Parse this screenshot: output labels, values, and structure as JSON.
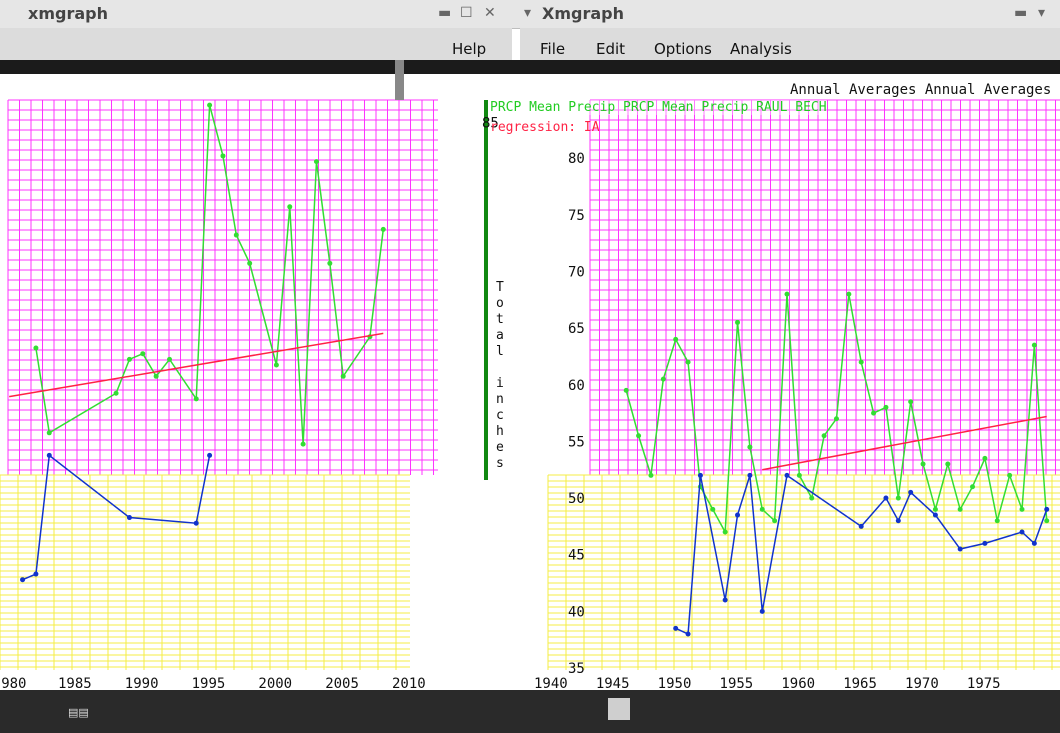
{
  "windows": [
    {
      "title": "xmgraph",
      "controls": [
        "▬",
        "☐",
        "✕"
      ],
      "menus": [
        "Help"
      ]
    },
    {
      "title": "Xmgraph",
      "menus": [
        "File",
        "Edit",
        "Options",
        "Analysis"
      ],
      "graph_title": "Annual Averages Annual Averages",
      "legend": "PRCP Mean Precip  PRCP Mean Precip  RAUL BECH",
      "regression_label": "regression: IA",
      "y_axis_label": [
        "T",
        "o",
        "t",
        "a",
        "l",
        "",
        "i",
        "n",
        "c",
        "h",
        "e",
        "s"
      ]
    }
  ],
  "colors": {
    "magenta_grid": "#ff33ff",
    "yellow_grid": "#f4ee44",
    "green_series": "#33dd33",
    "blue_series": "#1133cc",
    "regression": "#ff2244",
    "axis_green": "#118811"
  },
  "chart_data": [
    {
      "type": "line",
      "panel": "left",
      "xlabel": "",
      "ylabel": "",
      "x_ticks": [
        "980",
        "1985",
        "1990",
        "1995",
        "2000",
        "2005",
        "2010"
      ],
      "xlim": [
        1980,
        2010
      ],
      "series": [
        {
          "x": [
            1982,
            1983,
            1988,
            1989,
            1990,
            1991,
            1992,
            1994,
            1995,
            1996,
            1997,
            1998,
            2000,
            2001,
            2002,
            2003,
            2004,
            2005,
            2007,
            2008
          ],
          "y": [
            61.5,
            54,
            57.5,
            60.5,
            61,
            59,
            60.5,
            57,
            83,
            78.5,
            71.5,
            69,
            60,
            74,
            53,
            78,
            69,
            59,
            62.5,
            72
          ]
        },
        {
          "x": [
            1981,
            1982,
            1983,
            1989,
            1994,
            1995
          ],
          "y": [
            41,
            41.5,
            52,
            46.5,
            46,
            52
          ]
        }
      ],
      "regression": {
        "x": [
          1980,
          2008
        ],
        "y": [
          57.2,
          62.8
        ]
      }
    },
    {
      "type": "line",
      "panel": "right",
      "xlabel": "",
      "ylim": [
        35,
        85
      ],
      "y_ticks": [
        "35",
        "40",
        "45",
        "50",
        "55",
        "60",
        "65",
        "70",
        "75",
        "80",
        "85"
      ],
      "x_ticks": [
        "1940",
        "1945",
        "1950",
        "1955",
        "1960",
        "1965",
        "1970",
        "1975"
      ],
      "xlim": [
        1940,
        1980
      ],
      "series": [
        {
          "x": [
            1946,
            1947,
            1948,
            1949,
            1950,
            1951,
            1952,
            1953,
            1954,
            1955,
            1956,
            1957,
            1958,
            1959,
            1960,
            1961,
            1962,
            1963,
            1964,
            1965,
            1966,
            1967,
            1968,
            1969,
            1970,
            1971,
            1972,
            1973,
            1974,
            1975,
            1976,
            1977,
            1978,
            1979,
            1980
          ],
          "y": [
            59.5,
            55.5,
            52,
            60.5,
            64,
            62,
            51,
            49,
            47,
            65.5,
            54.5,
            49,
            48,
            68,
            52,
            50,
            55.5,
            57,
            68,
            62,
            57.5,
            58,
            50,
            58.5,
            53,
            49,
            53,
            49,
            51,
            53.5,
            48,
            52,
            49,
            63.5,
            48
          ]
        },
        {
          "x": [
            1950,
            1951,
            1952,
            1954,
            1955,
            1956,
            1957,
            1959,
            1965,
            1967,
            1968,
            1969,
            1971,
            1973,
            1975,
            1978,
            1979,
            1980
          ],
          "y": [
            38.5,
            38,
            52,
            41,
            48.5,
            52,
            40,
            52,
            47.5,
            50,
            48,
            50.5,
            48.5,
            45.5,
            46,
            47,
            46,
            49
          ]
        }
      ],
      "regression": {
        "x": [
          1957,
          1980
        ],
        "y": [
          52.5,
          57.2
        ]
      }
    }
  ]
}
